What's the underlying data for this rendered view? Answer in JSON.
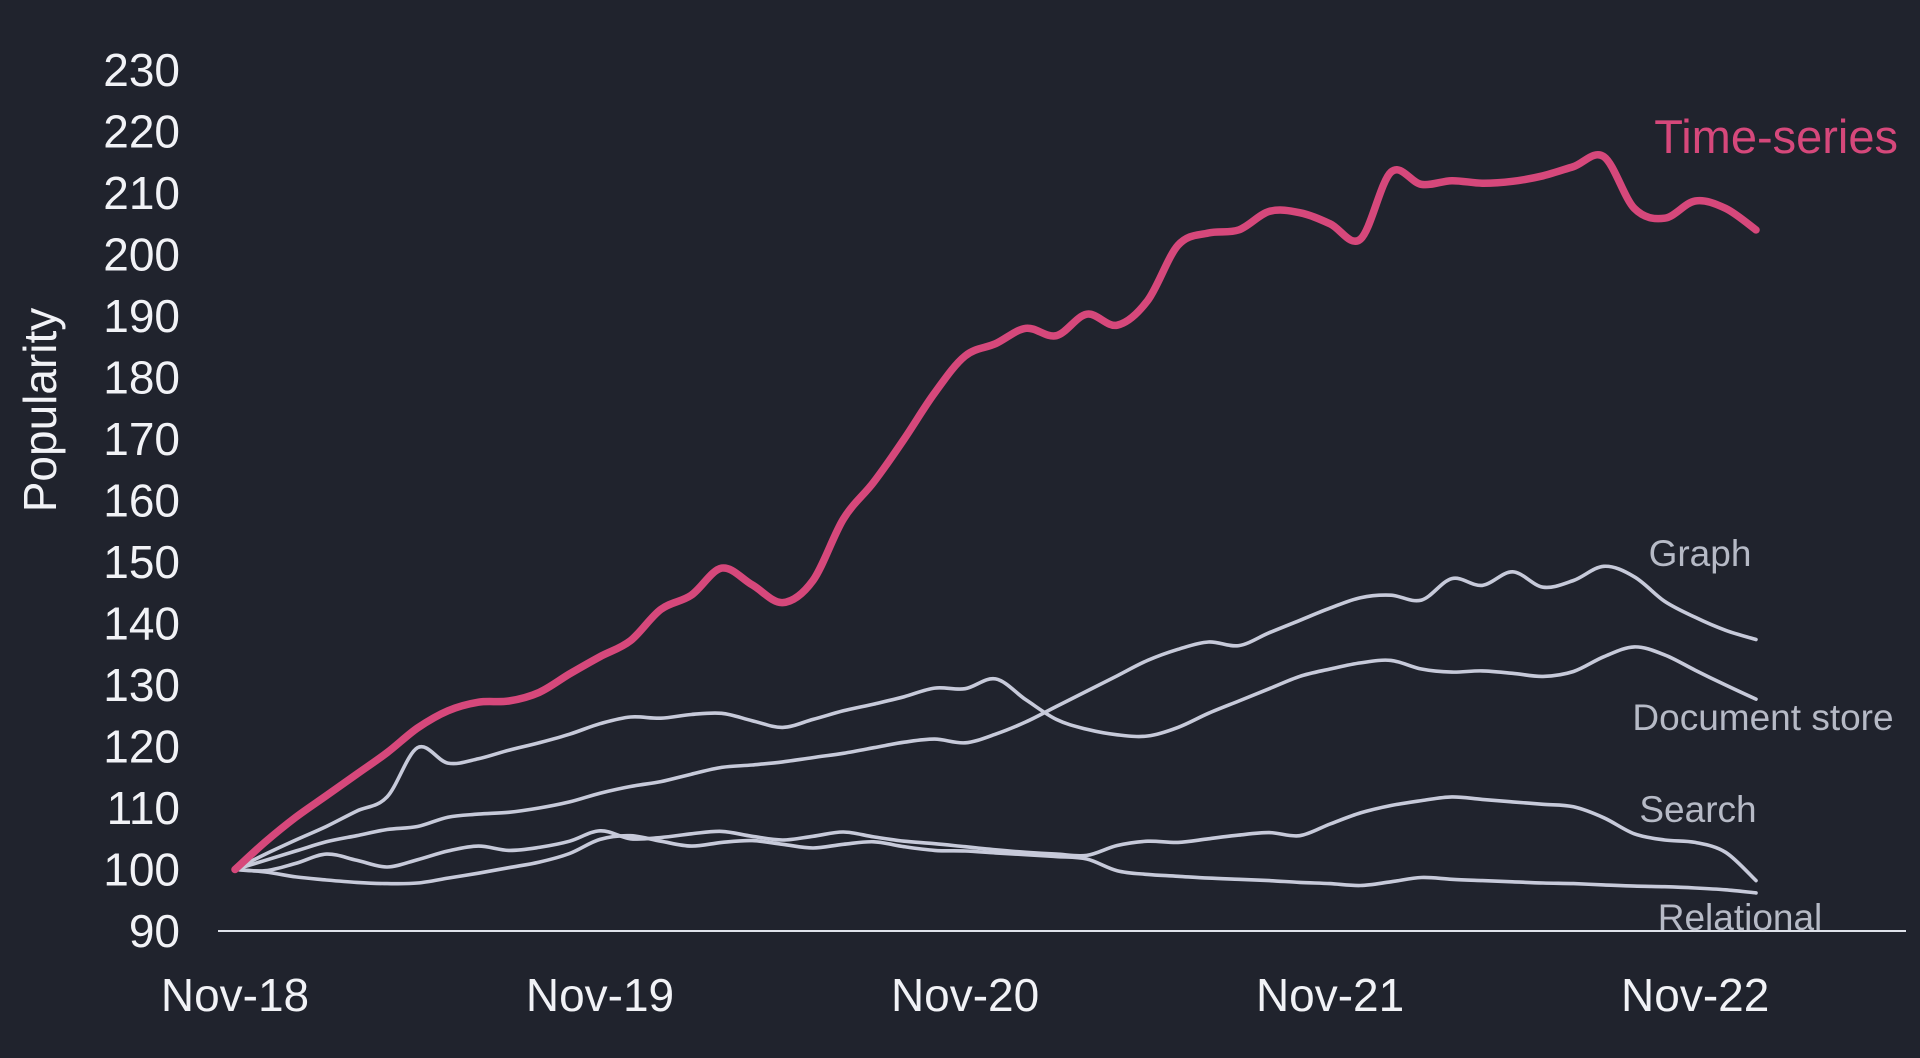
{
  "chart_data": {
    "type": "line",
    "title": "",
    "xlabel": "",
    "ylabel": "Popularity",
    "background_color": "#20232d",
    "axis_line_color": "#dfe2ea",
    "tick_text_color": "#f1f2f6",
    "grid": false,
    "legend_position": "inline-right-of-lines",
    "ylim": [
      90,
      235
    ],
    "y_ticks": [
      230,
      220,
      210,
      200,
      190,
      180,
      170,
      160,
      150,
      140,
      130,
      120,
      110,
      100,
      90
    ],
    "x_tick_labels": [
      "Nov-18",
      "Nov-19",
      "Nov-20",
      "Nov-21",
      "Nov-22"
    ],
    "x_tick_month_indices": [
      0,
      12,
      24,
      36,
      48
    ],
    "months": [
      "Nov-18",
      "Dec-18",
      "Jan-19",
      "Feb-19",
      "Mar-19",
      "Apr-19",
      "May-19",
      "Jun-19",
      "Jul-19",
      "Aug-19",
      "Sep-19",
      "Oct-19",
      "Nov-19",
      "Dec-19",
      "Jan-20",
      "Feb-20",
      "Mar-20",
      "Apr-20",
      "May-20",
      "Jun-20",
      "Jul-20",
      "Aug-20",
      "Sep-20",
      "Oct-20",
      "Nov-20",
      "Dec-20",
      "Jan-21",
      "Feb-21",
      "Mar-21",
      "Apr-21",
      "May-21",
      "Jun-21",
      "Jul-21",
      "Aug-21",
      "Sep-21",
      "Oct-21",
      "Nov-21",
      "Dec-21",
      "Jan-22",
      "Feb-22",
      "Mar-22",
      "Apr-22",
      "May-22",
      "Jun-22",
      "Jul-22",
      "Aug-22",
      "Sep-22",
      "Oct-22",
      "Nov-22",
      "Dec-22",
      "Jan-23"
    ],
    "series": [
      {
        "id": "graph",
        "name": "Graph",
        "color": "#c7cada",
        "label_color": "#b6bac6",
        "line_width": 3.6,
        "values": [
          100,
          101.5,
          103,
          104.5,
          105.5,
          106.5,
          107,
          108.5,
          109,
          109.3,
          110,
          111,
          112.4,
          113.5,
          114.3,
          115.5,
          116.6,
          117,
          117.5,
          118.2,
          118.9,
          119.8,
          120.7,
          121.2,
          120.6,
          122,
          124,
          126.5,
          129,
          131.5,
          134,
          135.8,
          137,
          136.4,
          138.5,
          140.5,
          142.5,
          144.2,
          144.6,
          143.8,
          147.3,
          146.2,
          148.4,
          145.9,
          147,
          149.3,
          147.6,
          143.6,
          141,
          138.9,
          137.4
        ]
      },
      {
        "id": "document-store",
        "name": "Document store",
        "color": "#c7cada",
        "label_color": "#b6bac6",
        "line_width": 3.6,
        "values": [
          100,
          102.5,
          104.8,
          107,
          109.5,
          111.8,
          119.8,
          117.3,
          118,
          119.4,
          120.6,
          122,
          123.7,
          124.8,
          124.6,
          125.2,
          125.4,
          124.2,
          123.1,
          124.4,
          125.8,
          126.9,
          128.1,
          129.5,
          129.4,
          131,
          127.6,
          124.4,
          122.8,
          121.9,
          121.7,
          123.1,
          125.4,
          127.4,
          129.4,
          131.4,
          132.6,
          133.6,
          134,
          132.6,
          132.1,
          132.3,
          131.9,
          131.4,
          132.2,
          134.6,
          136.2,
          134.9,
          132.4,
          130,
          127.7
        ]
      },
      {
        "id": "search",
        "name": "Search",
        "color": "#c7cada",
        "label_color": "#b6bac6",
        "line_width": 3.6,
        "values": [
          100,
          99.8,
          101,
          102.5,
          101.5,
          100.4,
          101.6,
          103,
          103.8,
          103.1,
          103.6,
          104.6,
          106.3,
          105,
          105.2,
          105.8,
          106.2,
          105.4,
          104.8,
          105.4,
          106.1,
          105.3,
          104.6,
          104.2,
          103.7,
          103.2,
          102.8,
          102.5,
          102.3,
          103.9,
          104.6,
          104.4,
          105,
          105.6,
          106,
          105.5,
          107.4,
          109.2,
          110.4,
          111.2,
          111.8,
          111.4,
          111,
          110.6,
          110.2,
          108.4,
          105.8,
          104.8,
          104.4,
          102.8,
          98.2
        ]
      },
      {
        "id": "relational",
        "name": "Relational",
        "color": "#c7cada",
        "label_color": "#b6bac6",
        "line_width": 3.6,
        "values": [
          100,
          99.6,
          98.8,
          98.3,
          97.9,
          97.7,
          97.8,
          98.6,
          99.4,
          100.3,
          101.2,
          102.6,
          104.9,
          105.5,
          104.6,
          103.8,
          104.4,
          104.7,
          104.1,
          103.5,
          104.1,
          104.5,
          103.7,
          103.1,
          103,
          102.7,
          102.4,
          102.1,
          101.7,
          99.8,
          99.2,
          98.9,
          98.6,
          98.4,
          98.2,
          97.9,
          97.7,
          97.4,
          98,
          98.7,
          98.4,
          98.2,
          98,
          97.8,
          97.7,
          97.5,
          97.3,
          97.2,
          97,
          96.7,
          96.2
        ]
      },
      {
        "id": "timeseries",
        "name": "Time-series",
        "color": "#d6487b",
        "label_color": "#d6487b",
        "line_width": 7.5,
        "values": [
          100,
          104.5,
          108.5,
          112,
          115.5,
          119,
          123,
          125.8,
          127.2,
          127.4,
          128.8,
          131.8,
          134.6,
          137.2,
          142.3,
          144.6,
          149,
          146.3,
          143.4,
          147,
          157,
          163,
          170,
          177.5,
          183.5,
          185.5,
          188,
          186.8,
          190.3,
          188.5,
          192.5,
          201.5,
          203.5,
          204,
          207,
          206.8,
          205,
          202.5,
          213.4,
          211.4,
          212,
          211.6,
          211.9,
          212.8,
          214.3,
          215.9,
          207.5,
          205.9,
          208.7,
          207.5,
          204
        ]
      }
    ]
  }
}
